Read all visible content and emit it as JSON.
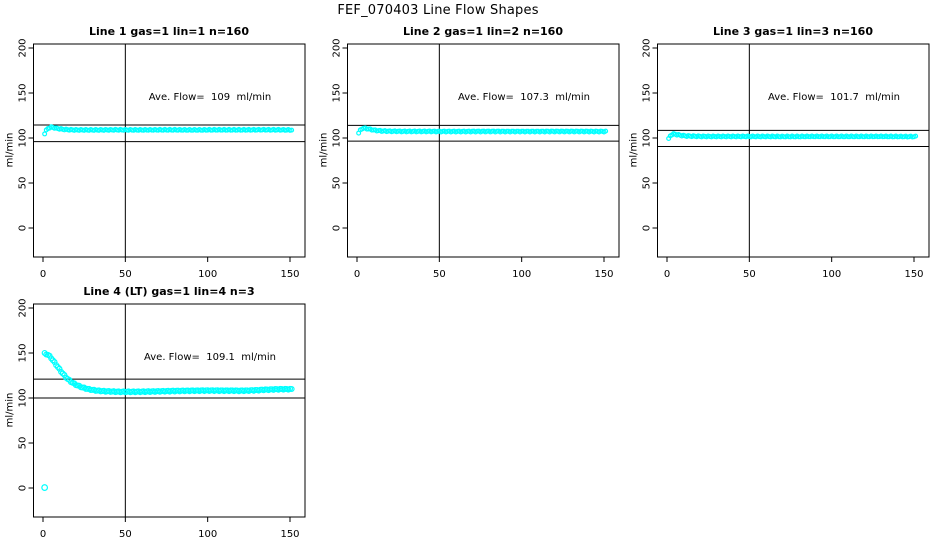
{
  "page_title": "FEF_070403  Line Flow Shapes",
  "colors": {
    "background": "#FFFFFF",
    "axis": "#000000",
    "data_points": "#00FFFF"
  },
  "chart_data": [
    {
      "type": "scatter",
      "title": "Line 1 gas=1 lin=1 n=160",
      "annotation": "Ave. Flow=  109  ml/min",
      "ave_flow_ml_min": 109,
      "n": 160,
      "ylabel": "ml/min",
      "xlabel": "",
      "xticks": [
        0,
        50,
        100,
        150
      ],
      "yticks": [
        0,
        50,
        100,
        150,
        200
      ],
      "xlim": [
        -6,
        159
      ],
      "ylim": [
        -33,
        204
      ],
      "vline_x": 50,
      "ref_lines": [
        114.5,
        96
      ],
      "marker": "open-circle",
      "marker_r": 1.9,
      "keypoints": [
        [
          1,
          105
        ],
        [
          2,
          108.5
        ],
        [
          3,
          110.5
        ],
        [
          4,
          111.5
        ],
        [
          5,
          112
        ],
        [
          6,
          111.7
        ],
        [
          8,
          110.8
        ],
        [
          10,
          110.2
        ],
        [
          12,
          109.6
        ],
        [
          15,
          109.2
        ],
        [
          20,
          108.9
        ],
        [
          30,
          108.9
        ],
        [
          45,
          109
        ],
        [
          60,
          108.9
        ],
        [
          75,
          109
        ],
        [
          90,
          108.9
        ],
        [
          105,
          109
        ],
        [
          120,
          109
        ],
        [
          135,
          109.1
        ],
        [
          151,
          108.9
        ]
      ],
      "outliers": []
    },
    {
      "type": "scatter",
      "title": "Line 2 gas=1 lin=2 n=160",
      "annotation": "Ave. Flow=  107.3  ml/min",
      "ave_flow_ml_min": 107.3,
      "n": 160,
      "ylabel": "ml/min",
      "xlabel": "",
      "xticks": [
        0,
        50,
        100,
        150
      ],
      "yticks": [
        0,
        50,
        100,
        150,
        200
      ],
      "xlim": [
        -6,
        159
      ],
      "ylim": [
        -33,
        204
      ],
      "vline_x": 50,
      "ref_lines": [
        114,
        96.5
      ],
      "marker": "open-circle",
      "marker_r": 1.9,
      "keypoints": [
        [
          1,
          105.5
        ],
        [
          2,
          108.5
        ],
        [
          3,
          110.3
        ],
        [
          4,
          110.9
        ],
        [
          5,
          110.7
        ],
        [
          7,
          110
        ],
        [
          9,
          109.2
        ],
        [
          12,
          108.3
        ],
        [
          15,
          107.8
        ],
        [
          20,
          107.5
        ],
        [
          30,
          107.3
        ],
        [
          45,
          107.3
        ],
        [
          60,
          107.2
        ],
        [
          80,
          107.3
        ],
        [
          100,
          107.2
        ],
        [
          120,
          107.3
        ],
        [
          135,
          107.3
        ],
        [
          151,
          107.2
        ]
      ],
      "outliers": []
    },
    {
      "type": "scatter",
      "title": "Line 3 gas=1 lin=3 n=160",
      "annotation": "Ave. Flow=  101.7  ml/min",
      "ave_flow_ml_min": 101.7,
      "n": 160,
      "ylabel": "ml/min",
      "xlabel": "",
      "xticks": [
        0,
        50,
        100,
        150
      ],
      "yticks": [
        0,
        50,
        100,
        150,
        200
      ],
      "xlim": [
        -6,
        159
      ],
      "ylim": [
        -33,
        204
      ],
      "vline_x": 50,
      "ref_lines": [
        108.5,
        90.5
      ],
      "marker": "open-circle",
      "marker_r": 1.9,
      "keypoints": [
        [
          1,
          99
        ],
        [
          2,
          102.3
        ],
        [
          3,
          103.8
        ],
        [
          4,
          104.4
        ],
        [
          5,
          104.1
        ],
        [
          7,
          103.4
        ],
        [
          9,
          102.7
        ],
        [
          12,
          102.2
        ],
        [
          15,
          102
        ],
        [
          20,
          101.8
        ],
        [
          30,
          101.7
        ],
        [
          50,
          101.7
        ],
        [
          70,
          101.6
        ],
        [
          90,
          101.7
        ],
        [
          110,
          101.7
        ],
        [
          130,
          101.7
        ],
        [
          151,
          101.5
        ]
      ],
      "outliers": []
    },
    {
      "type": "scatter",
      "title": "Line 4 (LT) gas=1 lin=4 n=3",
      "annotation": "Ave. Flow=  109.1  ml/min",
      "ave_flow_ml_min": 109.1,
      "n": 3,
      "ylabel": "ml/min",
      "xlabel": "",
      "xticks": [
        0,
        50,
        100,
        150
      ],
      "yticks": [
        0,
        50,
        100,
        150,
        200
      ],
      "xlim": [
        -6,
        159
      ],
      "ylim": [
        -33,
        204
      ],
      "vline_x": 50,
      "ref_lines": [
        121,
        100
      ],
      "marker": "open-circle",
      "marker_r": 2.4,
      "keypoints": [
        [
          1,
          149.5
        ],
        [
          3,
          148
        ],
        [
          4,
          146.5
        ],
        [
          5,
          144.5
        ],
        [
          6,
          142
        ],
        [
          7,
          139.5
        ],
        [
          8,
          137
        ],
        [
          9,
          134.5
        ],
        [
          10,
          132
        ],
        [
          11,
          129.5
        ],
        [
          12,
          127.2
        ],
        [
          13,
          125
        ],
        [
          14,
          123
        ],
        [
          15,
          121.2
        ],
        [
          16,
          119.6
        ],
        [
          17,
          118.1
        ],
        [
          18,
          116.9
        ],
        [
          19,
          115.8
        ],
        [
          20,
          114.8
        ],
        [
          22,
          113.1
        ],
        [
          24,
          111.7
        ],
        [
          26,
          110.6
        ],
        [
          28,
          109.7
        ],
        [
          30,
          109
        ],
        [
          33,
          108.2
        ],
        [
          36,
          107.7
        ],
        [
          40,
          107.3
        ],
        [
          45,
          107
        ],
        [
          50,
          106.9
        ],
        [
          55,
          106.9
        ],
        [
          60,
          107
        ],
        [
          70,
          107.4
        ],
        [
          80,
          107.8
        ],
        [
          90,
          108.1
        ],
        [
          100,
          108.3
        ],
        [
          110,
          108.2
        ],
        [
          120,
          108.1
        ],
        [
          125,
          108.3
        ],
        [
          130,
          108.7
        ],
        [
          135,
          109.2
        ],
        [
          140,
          109.6
        ],
        [
          145,
          109.8
        ],
        [
          151,
          109.8
        ]
      ],
      "outliers": [
        [
          1,
          0.5
        ]
      ]
    }
  ]
}
